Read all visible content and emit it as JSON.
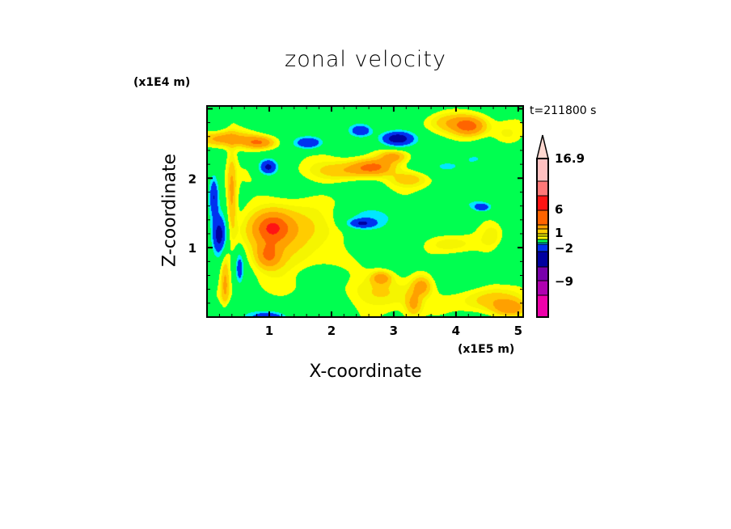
{
  "chart_data": {
    "type": "heatmap",
    "title": "zonal velocity",
    "xlabel": "X-coordinate",
    "ylabel": "Z-coordinate",
    "x_unit": "(x1E5 m)",
    "y_unit": "(x1E4 m)",
    "annotation": "t=211800 s",
    "xlim": [
      0,
      5.08
    ],
    "ylim": [
      0,
      3.04
    ],
    "x_ticks": [
      "1",
      "2",
      "3",
      "4",
      "5"
    ],
    "y_ticks": [
      "1",
      "2"
    ],
    "colorbar": {
      "labels": [
        "16.9",
        "6",
        "1",
        "−2",
        "−9"
      ],
      "label_values": [
        16.9,
        6,
        1,
        -2,
        -9
      ],
      "colors_bottom_to_top": [
        "#ee00aa",
        "#b000b0",
        "#7800aa",
        "#0000a0",
        "#0032f0",
        "#00e8ff",
        "#00ff50",
        "#ffff00",
        "#f5f500",
        "#ffcc00",
        "#ffa000",
        "#ff6400",
        "#ff1414",
        "#ff7878",
        "#ffc0c0"
      ],
      "extend_top_color": "#ffd8d0"
    }
  }
}
